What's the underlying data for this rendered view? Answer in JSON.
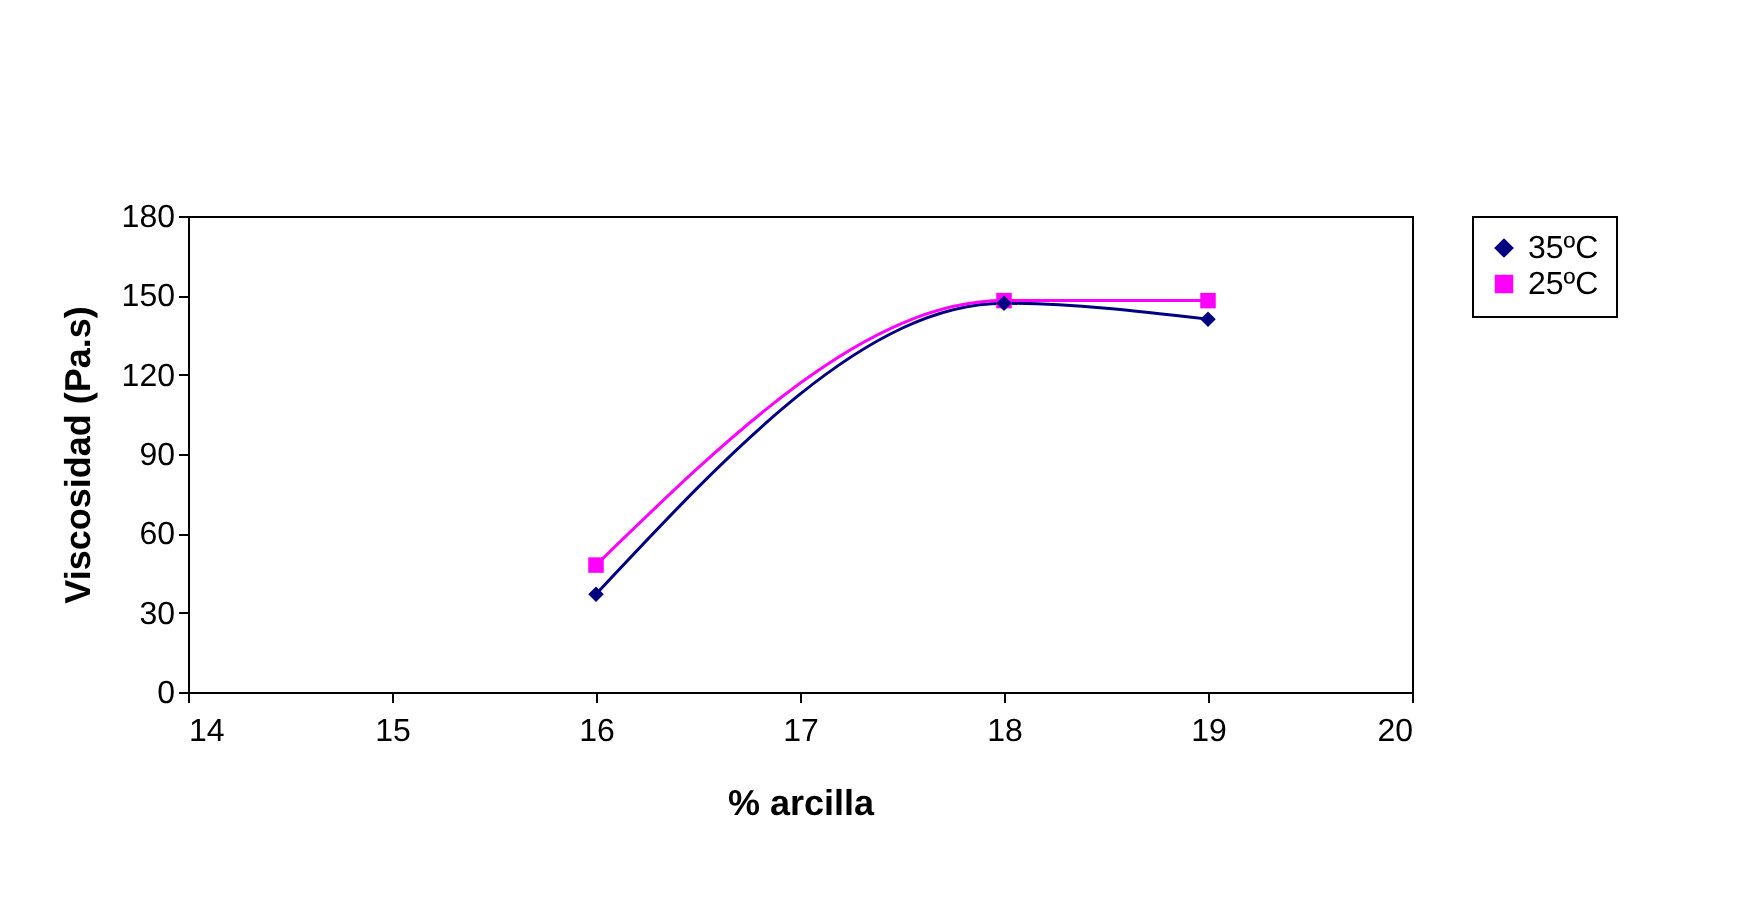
{
  "chart_data": {
    "type": "line",
    "xlabel": "% arcilla",
    "ylabel": "Viscosidad (Pa.s)",
    "x": [
      16,
      18,
      19
    ],
    "series": [
      {
        "name": "35ºC",
        "color": "#000080",
        "marker": "diamond",
        "values": [
          37,
          147,
          141
        ]
      },
      {
        "name": "25ºC",
        "color": "#ff00ff",
        "marker": "square",
        "values": [
          48,
          148,
          148
        ]
      }
    ],
    "xlim": [
      14,
      20
    ],
    "xticks": [
      14,
      15,
      16,
      17,
      18,
      19,
      20
    ],
    "ylim": [
      0,
      180
    ],
    "yticks": [
      0,
      30,
      60,
      90,
      120,
      150,
      180
    ],
    "grid": false,
    "legend": "right",
    "line_style": "solid"
  }
}
